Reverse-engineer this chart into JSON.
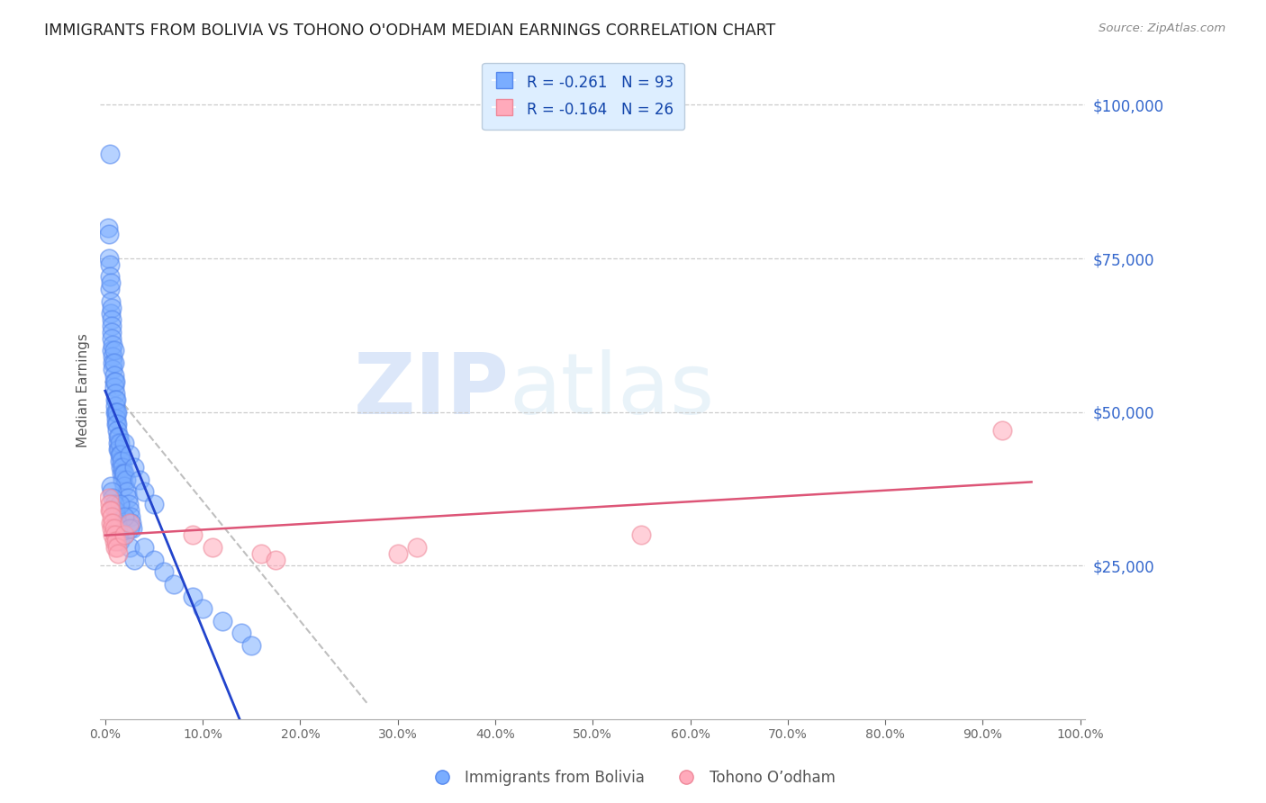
{
  "title": "IMMIGRANTS FROM BOLIVIA VS TOHONO O'ODHAM MEDIAN EARNINGS CORRELATION CHART",
  "source": "Source: ZipAtlas.com",
  "ylabel": "Median Earnings",
  "ytick_values": [
    25000,
    50000,
    75000,
    100000
  ],
  "ymin": 0,
  "ymax": 107000,
  "xmin": -0.005,
  "xmax": 1.005,
  "series1_label": "Immigrants from Bolivia",
  "series1_R": "-0.261",
  "series1_N": "93",
  "series1_color": "#7aadff",
  "series1_edge_color": "#5588ee",
  "series1_line_color": "#2244cc",
  "series2_label": "Tohono O’odham",
  "series2_R": "-0.164",
  "series2_N": "26",
  "series2_color": "#ffaabb",
  "series2_edge_color": "#ee8899",
  "series2_line_color": "#dd5577",
  "blue_x": [
    0.005,
    0.003,
    0.004,
    0.004,
    0.005,
    0.005,
    0.005,
    0.006,
    0.006,
    0.006,
    0.007,
    0.007,
    0.007,
    0.007,
    0.007,
    0.007,
    0.008,
    0.008,
    0.008,
    0.008,
    0.009,
    0.009,
    0.009,
    0.009,
    0.009,
    0.01,
    0.01,
    0.01,
    0.01,
    0.01,
    0.011,
    0.011,
    0.011,
    0.011,
    0.012,
    0.012,
    0.012,
    0.013,
    0.013,
    0.013,
    0.014,
    0.014,
    0.015,
    0.015,
    0.015,
    0.016,
    0.016,
    0.017,
    0.017,
    0.018,
    0.018,
    0.019,
    0.02,
    0.02,
    0.021,
    0.022,
    0.023,
    0.024,
    0.025,
    0.026,
    0.027,
    0.028,
    0.006,
    0.007,
    0.008,
    0.009,
    0.01,
    0.011,
    0.012,
    0.013,
    0.014,
    0.015,
    0.02,
    0.025,
    0.03,
    0.015,
    0.02,
    0.025,
    0.04,
    0.05,
    0.06,
    0.07,
    0.09,
    0.1,
    0.12,
    0.14,
    0.15,
    0.02,
    0.025,
    0.03,
    0.035,
    0.04,
    0.05
  ],
  "blue_y": [
    92000,
    80000,
    79000,
    75000,
    74000,
    72000,
    70000,
    71000,
    68000,
    66000,
    67000,
    65000,
    64000,
    63000,
    62000,
    60000,
    61000,
    59000,
    58000,
    57000,
    60000,
    58000,
    56000,
    55000,
    54000,
    55000,
    53000,
    52000,
    51000,
    50000,
    52000,
    50000,
    49000,
    48000,
    50000,
    48000,
    47000,
    46000,
    45000,
    44000,
    46000,
    44000,
    45000,
    43000,
    42000,
    43000,
    41000,
    42000,
    40000,
    41000,
    39000,
    40000,
    40000,
    38000,
    39000,
    37000,
    36000,
    35000,
    34000,
    33000,
    32000,
    31000,
    38000,
    37000,
    36000,
    35000,
    34000,
    33000,
    32000,
    31000,
    30000,
    29000,
    30000,
    28000,
    26000,
    35000,
    33000,
    31000,
    28000,
    26000,
    24000,
    22000,
    20000,
    18000,
    16000,
    14000,
    12000,
    45000,
    43000,
    41000,
    39000,
    37000,
    35000
  ],
  "pink_x": [
    0.004,
    0.005,
    0.005,
    0.006,
    0.006,
    0.007,
    0.007,
    0.008,
    0.008,
    0.009,
    0.009,
    0.01,
    0.01,
    0.011,
    0.012,
    0.013,
    0.02,
    0.025,
    0.09,
    0.11,
    0.16,
    0.175,
    0.3,
    0.32,
    0.55,
    0.92
  ],
  "pink_y": [
    36000,
    35000,
    34000,
    34000,
    32000,
    33000,
    31000,
    32000,
    30000,
    31000,
    29000,
    30000,
    28000,
    29000,
    28000,
    27000,
    30000,
    32000,
    30000,
    28000,
    27000,
    26000,
    27000,
    28000,
    30000,
    47000
  ],
  "watermark_zip": "ZIP",
  "watermark_atlas": "atlas",
  "bg_color": "#ffffff",
  "grid_color": "#cccccc",
  "title_color": "#222222",
  "axis_label_color": "#3366cc",
  "legend_bg_color": "#ddeeff"
}
